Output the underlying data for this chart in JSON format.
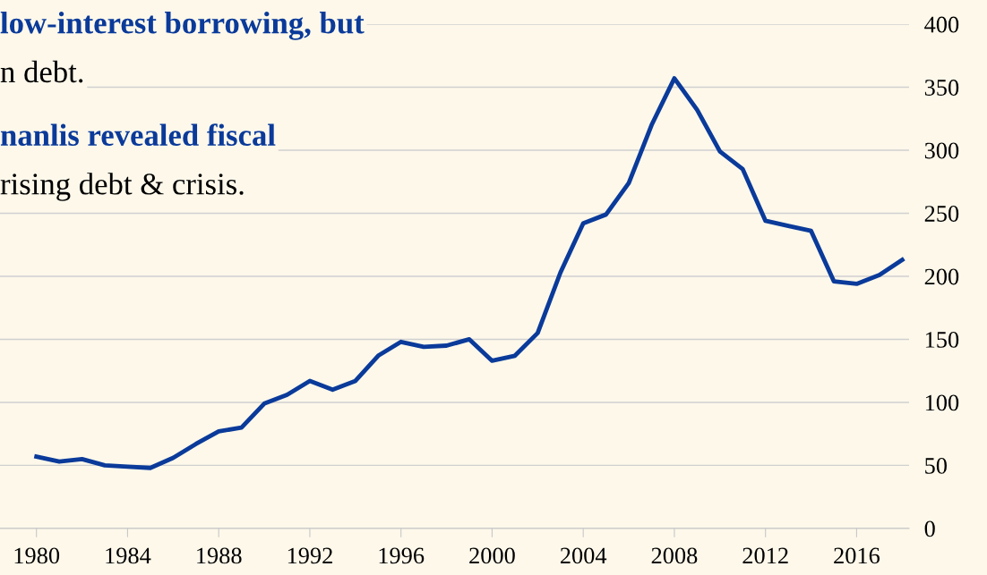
{
  "chart_data": {
    "type": "line",
    "x": [
      1980,
      1981,
      1982,
      1983,
      1984,
      1985,
      1986,
      1987,
      1988,
      1989,
      1990,
      1991,
      1992,
      1993,
      1994,
      1995,
      1996,
      1997,
      1998,
      1999,
      2000,
      2001,
      2002,
      2003,
      2004,
      2005,
      2006,
      2007,
      2008,
      2009,
      2010,
      2011,
      2012,
      2013,
      2014,
      2015,
      2016,
      2017,
      2018
    ],
    "series": [
      {
        "color": "#0a3a9a",
        "values": [
          57,
          53,
          55,
          50,
          49,
          48,
          56,
          67,
          77,
          80,
          99,
          106,
          117,
          110,
          117,
          137,
          148,
          144,
          145,
          150,
          133,
          137,
          155,
          203,
          242,
          249,
          274,
          320,
          357,
          332,
          299,
          285,
          244,
          240,
          236,
          196,
          194,
          201,
          213
        ]
      }
    ],
    "xlim": [
      1978.4,
      2018.3
    ],
    "xticks": [
      1980,
      1984,
      1988,
      1992,
      1996,
      2000,
      2004,
      2008,
      2012,
      2016
    ],
    "ylim": [
      0,
      400
    ],
    "yticks": [
      0,
      50,
      100,
      150,
      200,
      250,
      300,
      350,
      400
    ],
    "grid": "y",
    "marker": "none",
    "line_style": "solid",
    "annotations": [
      "low-interest borrowing, but",
      "n debt.",
      "nanlis revealed fiscal",
      "rising debt & crisis."
    ]
  }
}
